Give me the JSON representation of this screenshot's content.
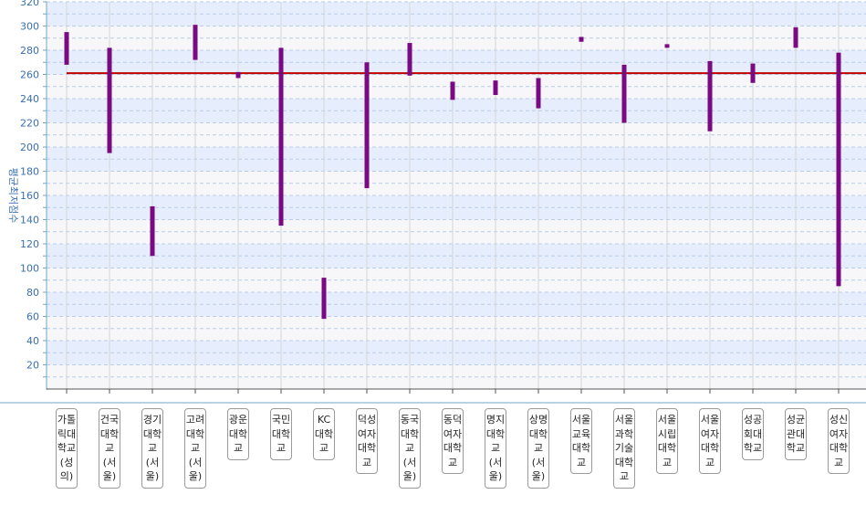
{
  "chart_data": {
    "type": "range-bar",
    "ylabel": "평균최저점수",
    "ylim": [
      0,
      320
    ],
    "yticks": [
      20,
      40,
      60,
      80,
      100,
      120,
      140,
      160,
      180,
      200,
      220,
      240,
      260,
      280,
      300,
      320
    ],
    "reference_line": 261,
    "colors": {
      "bar": "#7a0a82",
      "reference": "#c00000",
      "band": "#e6edfd",
      "axis": "#6fa7c7"
    },
    "categories": [
      "가톨릭대학교(성의)",
      "건국대학교(서울)",
      "경기대학교(서울)",
      "고려대학교(서울)",
      "광운대학교",
      "국민대학교",
      "KC대학교",
      "덕성여자대학교",
      "동국대학교(서울)",
      "동덕여자대학교",
      "명지대학교(서울)",
      "상명대학교(서울)",
      "서울교육대학교",
      "서울과학기술대학교",
      "서울시립대학교",
      "서울여자대학교",
      "성공회대학교",
      "성균관대학교",
      "성신여자대학교"
    ],
    "ranges": [
      [
        268,
        295
      ],
      [
        195,
        282
      ],
      [
        110,
        151
      ],
      [
        272,
        301
      ],
      [
        257,
        262
      ],
      [
        135,
        282
      ],
      [
        58,
        92
      ],
      [
        166,
        270
      ],
      [
        259,
        286
      ],
      [
        239,
        254
      ],
      [
        243,
        255
      ],
      [
        232,
        257
      ],
      [
        287,
        291
      ],
      [
        220,
        268
      ],
      [
        282,
        285
      ],
      [
        213,
        271
      ],
      [
        253,
        269
      ],
      [
        282,
        299
      ],
      [
        85,
        278
      ]
    ]
  }
}
